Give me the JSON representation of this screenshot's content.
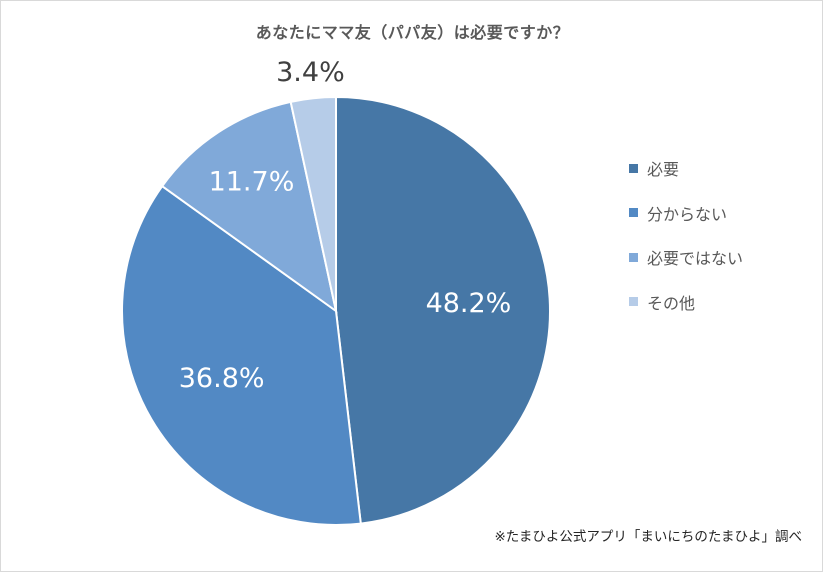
{
  "chart_data": {
    "type": "pie",
    "title": "あなたにママ友（パパ友）は必要ですか？",
    "categories": [
      "必要",
      "分からない",
      "必要ではない",
      "その他"
    ],
    "values": [
      48.2,
      36.8,
      11.7,
      3.4
    ],
    "labels": [
      "48.2%",
      "36.8%",
      "11.7%",
      "3.4%"
    ],
    "colors": [
      "#4677a6",
      "#5289c4",
      "#80a9d9",
      "#b6cce8"
    ],
    "legend_position": "right",
    "start": "12 o'clock",
    "direction": "clockwise"
  },
  "source_note": "※たまひよ公式アプリ「まいにちのたまひよ」調べ"
}
